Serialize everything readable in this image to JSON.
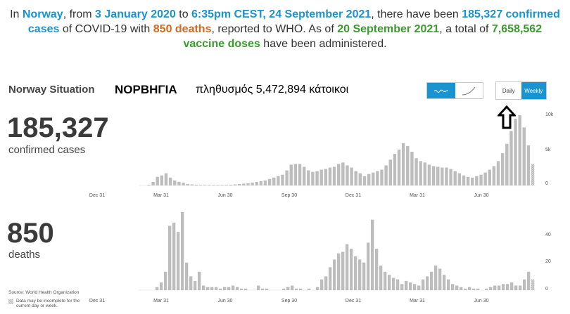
{
  "summary": {
    "p1": "In ",
    "country": "Norway",
    "p2": ", from ",
    "start_date": "3 January 2020",
    "p3": " to ",
    "end_datetime": "6:35pm CEST, 24 September 2021",
    "p4": ", there have been ",
    "cases_count": "185,327 confirmed cases",
    "p5": " of COVID-19 with ",
    "deaths_count": "850 deaths",
    "p6": ", reported to WHO. As of ",
    "vaccine_date": "20 September 2021",
    "p7": ", a total of ",
    "vaccine_doses": "7,658,562 vaccine doses",
    "p8": " have been administered."
  },
  "header": {
    "title": "Norway Situation",
    "greek_country": "ΝΟΡΒΗΓΙΑ",
    "greek_population": "πληθυσμός 5,472,894 κάτοικοι"
  },
  "toggles": {
    "chart_type_selected": "linear",
    "daily_label": "Daily",
    "weekly_label": "Weekly",
    "period_selected": "weekly",
    "accent_color": "#1a93d1"
  },
  "cases": {
    "value": "185,327",
    "label": "confirmed cases"
  },
  "deaths": {
    "value": "850",
    "label": "deaths"
  },
  "footer": {
    "source": "Source: World Health Organization",
    "note": "Data may be incomplete for the current day or week."
  },
  "chart_data": [
    {
      "type": "bar",
      "name_hint": "weekly confirmed cases",
      "x_tick_labels": [
        "Dec 31",
        "Mar 31",
        "Jun 30",
        "Sep 30",
        "Dec 31",
        "Mar 31",
        "Jun 30"
      ],
      "y_tick_labels": [
        "10k",
        "5k",
        "0"
      ],
      "ylim": [
        0,
        10000
      ],
      "values": [
        0,
        0,
        100,
        500,
        1200,
        1400,
        1700,
        1100,
        700,
        500,
        400,
        200,
        150,
        100,
        80,
        60,
        50,
        40,
        50,
        60,
        80,
        100,
        150,
        200,
        250,
        300,
        400,
        500,
        600,
        700,
        900,
        1100,
        1300,
        1500,
        2100,
        2900,
        3000,
        3000,
        2600,
        2100,
        1900,
        2000,
        2200,
        2300,
        2500,
        2600,
        3000,
        3200,
        2800,
        2500,
        2000,
        1700,
        1300,
        1600,
        1800,
        2000,
        2200,
        2800,
        3600,
        4400,
        5000,
        5900,
        5500,
        4700,
        3800,
        3400,
        3200,
        2900,
        2700,
        2600,
        2500,
        2500,
        2300,
        2000,
        1700,
        1400,
        1200,
        1100,
        1300,
        1500,
        1800,
        2200,
        2700,
        3400,
        4500,
        5800,
        7600,
        9300,
        9800,
        8100,
        5600,
        3000
      ],
      "partial_last": true,
      "bar_color": "#bdbdbd",
      "grid": false
    },
    {
      "type": "bar",
      "name_hint": "weekly deaths",
      "x_tick_labels": [
        "Dec 31",
        "Mar 31",
        "Jun 30",
        "Sep 30",
        "Dec 31",
        "Mar 31",
        "Jun 30"
      ],
      "y_tick_labels": [
        "40",
        "20",
        "0"
      ],
      "ylim": [
        0,
        50
      ],
      "values": [
        0,
        0,
        0,
        0,
        2,
        5,
        12,
        42,
        44,
        38,
        52,
        18,
        9,
        6,
        12,
        3,
        2,
        2,
        2,
        1,
        2,
        2,
        3,
        2,
        1,
        1,
        0,
        0,
        3,
        1,
        1,
        0,
        0,
        0,
        1,
        2,
        3,
        1,
        1,
        0,
        1,
        0,
        2,
        7,
        9,
        15,
        20,
        24,
        25,
        30,
        27,
        22,
        20,
        18,
        31,
        46,
        27,
        16,
        12,
        10,
        8,
        7,
        4,
        6,
        5,
        4,
        3,
        7,
        9,
        12,
        16,
        14,
        10,
        7,
        4,
        3,
        2,
        1,
        2,
        1,
        1,
        0,
        1,
        2,
        3,
        3,
        4,
        4,
        5,
        3,
        3,
        7,
        12,
        7
      ],
      "partial_last": true,
      "bar_color": "#bdbdbd",
      "grid": false
    }
  ]
}
